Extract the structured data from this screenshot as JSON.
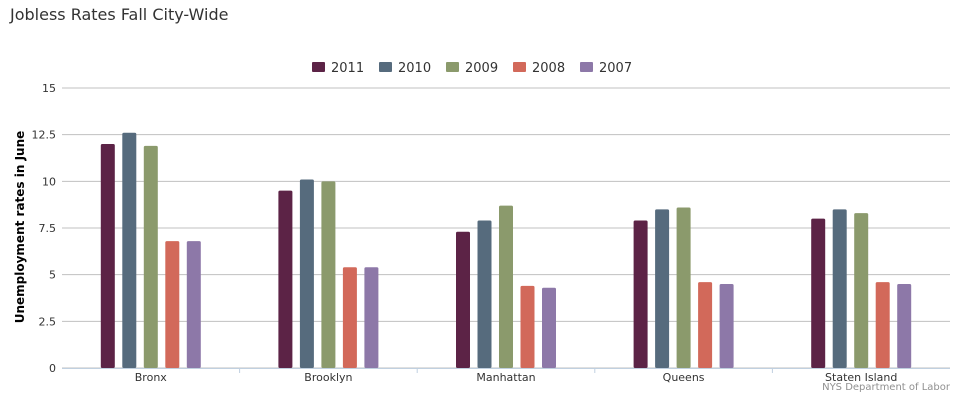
{
  "chart_data": {
    "type": "bar",
    "title": "Jobless Rates Fall City-Wide",
    "ylabel": "Unemployment rates in June",
    "xlabel": "",
    "credit": "NYS Department of Labor",
    "categories": [
      "Bronx",
      "Brooklyn",
      "Manhattan",
      "Queens",
      "Staten Island"
    ],
    "ylim": [
      0,
      15
    ],
    "yticks": [
      "0",
      "2.5",
      "5",
      "7.5",
      "10",
      "12.5",
      "15"
    ],
    "grid": true,
    "legend_position": "top-center",
    "series": [
      {
        "name": "2011",
        "color": "#5c2346",
        "values": [
          12.0,
          9.5,
          7.3,
          7.9,
          8.0
        ]
      },
      {
        "name": "2010",
        "color": "#566b7d",
        "values": [
          12.6,
          10.1,
          7.9,
          8.5,
          8.5
        ]
      },
      {
        "name": "2009",
        "color": "#8b9a6c",
        "values": [
          11.9,
          10.0,
          8.7,
          8.6,
          8.3
        ]
      },
      {
        "name": "2008",
        "color": "#d2695a",
        "values": [
          6.8,
          5.4,
          4.4,
          4.6,
          4.6
        ]
      },
      {
        "name": "2007",
        "color": "#8d78a8",
        "values": [
          6.8,
          5.4,
          4.3,
          4.5,
          4.5
        ]
      }
    ]
  }
}
